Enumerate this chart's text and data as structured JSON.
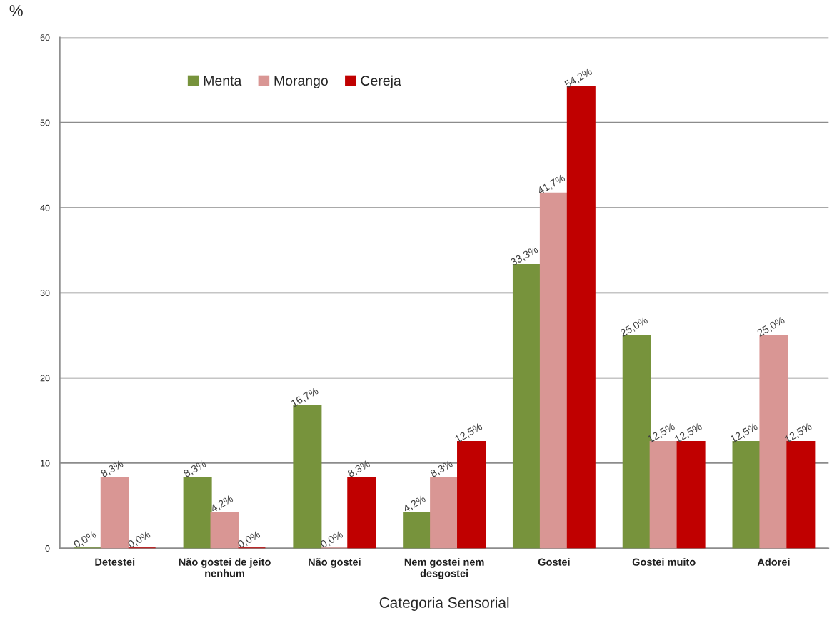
{
  "chart_data": {
    "type": "bar",
    "ylabel": "%",
    "xlabel": "Categoria Sensorial",
    "categories": [
      "Detestei",
      "Não gostei de jeito\nnenhum",
      "Não gostei",
      "Nem gostei nem\ndesgostei",
      "Gostei",
      "Gostei muito",
      "Adorei"
    ],
    "series": [
      {
        "name": "Menta",
        "color": "#77933c",
        "values": [
          0,
          8.3,
          16.7,
          4.2,
          33.3,
          25.0,
          12.5
        ],
        "value_labels": [
          "0,0%",
          "8,3%",
          "16,7%",
          "4,2%",
          "33,3%",
          "25,0%",
          "12,5%"
        ]
      },
      {
        "name": "Morango",
        "color": "#d99694",
        "values": [
          8.3,
          4.2,
          0,
          8.3,
          41.7,
          12.5,
          25.0
        ],
        "value_labels": [
          "8,3%",
          "4,2%",
          "0,0%",
          "8,3%",
          "41,7%",
          "12,5%",
          "25,0%"
        ]
      },
      {
        "name": "Cereja",
        "color": "#c00000",
        "values": [
          0,
          0,
          8.3,
          12.5,
          54.2,
          12.5,
          12.5
        ],
        "value_labels": [
          "0,0%",
          "0,0%",
          "8,3%",
          "12,5%",
          "54,2%",
          "12,5%",
          "12,5%"
        ]
      }
    ],
    "ylim": [
      0,
      60
    ],
    "yticks": [
      0,
      10,
      20,
      30,
      40,
      50,
      60
    ],
    "grid": "y",
    "legend": "top left"
  }
}
